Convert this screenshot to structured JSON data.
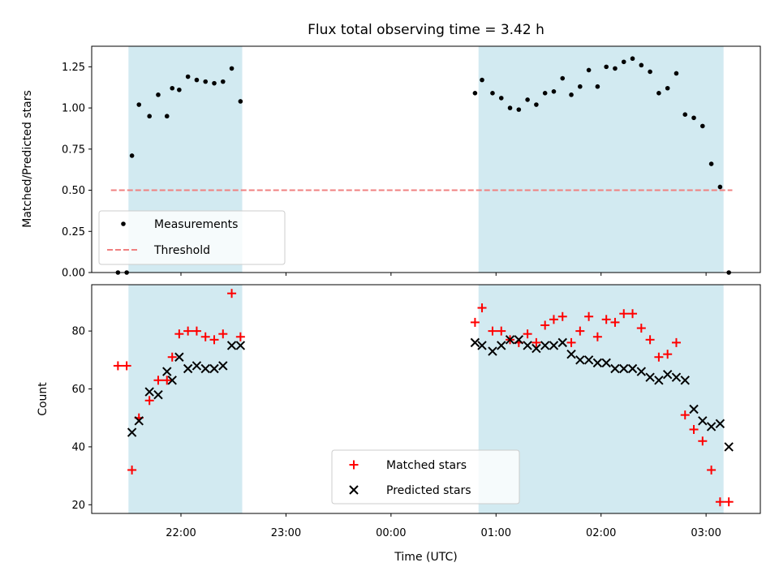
{
  "chart_data": [
    {
      "type": "scatter",
      "panel": "top",
      "title": "Flux total observing time = 3.42 h",
      "ylabel": "Matched/Predicted stars",
      "xlabel": "",
      "ylim": [
        0,
        1.375
      ],
      "x_range": [
        "21:09",
        "03:31"
      ],
      "yticks": [
        "0.00",
        "0.25",
        "0.50",
        "0.75",
        "1.00",
        "1.25"
      ],
      "grid": false,
      "legend_position": "lower-left",
      "observing_windows": [
        [
          "21:30",
          "22:35"
        ],
        [
          "00:50",
          "03:10"
        ]
      ],
      "window_color": "#add8e6",
      "threshold": {
        "name": "Threshold",
        "value": 0.5,
        "x": [
          "21:20",
          "03:15"
        ],
        "color": "#f08080",
        "style": "dashed"
      },
      "series": [
        {
          "name": "Measurements",
          "color": "#000000",
          "marker": "dot",
          "points": [
            [
              "21:24",
              0.0
            ],
            [
              "21:29",
              0.0
            ],
            [
              "21:32",
              0.71
            ],
            [
              "21:36",
              1.02
            ],
            [
              "21:42",
              0.95
            ],
            [
              "21:47",
              1.08
            ],
            [
              "21:52",
              0.95
            ],
            [
              "21:55",
              1.12
            ],
            [
              "21:59",
              1.11
            ],
            [
              "22:04",
              1.19
            ],
            [
              "22:09",
              1.17
            ],
            [
              "22:14",
              1.16
            ],
            [
              "22:19",
              1.15
            ],
            [
              "22:24",
              1.16
            ],
            [
              "22:29",
              1.24
            ],
            [
              "22:34",
              1.04
            ],
            [
              "00:48",
              1.09
            ],
            [
              "00:52",
              1.17
            ],
            [
              "00:58",
              1.09
            ],
            [
              "01:03",
              1.06
            ],
            [
              "01:08",
              1.0
            ],
            [
              "01:13",
              0.99
            ],
            [
              "01:18",
              1.05
            ],
            [
              "01:23",
              1.02
            ],
            [
              "01:28",
              1.09
            ],
            [
              "01:33",
              1.1
            ],
            [
              "01:38",
              1.18
            ],
            [
              "01:43",
              1.08
            ],
            [
              "01:48",
              1.13
            ],
            [
              "01:53",
              1.23
            ],
            [
              "01:58",
              1.13
            ],
            [
              "02:03",
              1.25
            ],
            [
              "02:08",
              1.24
            ],
            [
              "02:13",
              1.28
            ],
            [
              "02:18",
              1.3
            ],
            [
              "02:23",
              1.26
            ],
            [
              "02:28",
              1.22
            ],
            [
              "02:33",
              1.09
            ],
            [
              "02:38",
              1.12
            ],
            [
              "02:43",
              1.21
            ],
            [
              "02:48",
              0.96
            ],
            [
              "02:53",
              0.94
            ],
            [
              "02:58",
              0.89
            ],
            [
              "03:03",
              0.66
            ],
            [
              "03:08",
              0.52
            ],
            [
              "03:13",
              0.0
            ]
          ]
        }
      ]
    },
    {
      "type": "scatter",
      "panel": "bottom",
      "title": "",
      "ylabel": "Count",
      "xlabel": "Time (UTC)",
      "ylim": [
        17,
        96
      ],
      "x_range": [
        "21:09",
        "03:31"
      ],
      "yticks": [
        "20",
        "40",
        "60",
        "80"
      ],
      "xticks": [
        "22:00",
        "23:00",
        "00:00",
        "01:00",
        "02:00",
        "03:00"
      ],
      "grid": false,
      "legend_position": "lower-center",
      "observing_windows": [
        [
          "21:30",
          "22:35"
        ],
        [
          "00:50",
          "03:10"
        ]
      ],
      "window_color": "#add8e6",
      "series": [
        {
          "name": "Matched stars",
          "color": "#ff0000",
          "marker": "plus",
          "points": [
            [
              "21:24",
              68
            ],
            [
              "21:29",
              68
            ],
            [
              "21:32",
              32
            ],
            [
              "21:36",
              50
            ],
            [
              "21:42",
              56
            ],
            [
              "21:47",
              63
            ],
            [
              "21:52",
              63
            ],
            [
              "21:55",
              71
            ],
            [
              "21:59",
              79
            ],
            [
              "22:04",
              80
            ],
            [
              "22:09",
              80
            ],
            [
              "22:14",
              78
            ],
            [
              "22:19",
              77
            ],
            [
              "22:24",
              79
            ],
            [
              "22:29",
              93
            ],
            [
              "22:34",
              78
            ],
            [
              "00:48",
              83
            ],
            [
              "00:52",
              88
            ],
            [
              "00:58",
              80
            ],
            [
              "01:03",
              80
            ],
            [
              "01:08",
              77
            ],
            [
              "01:13",
              76
            ],
            [
              "01:18",
              79
            ],
            [
              "01:23",
              76
            ],
            [
              "01:28",
              82
            ],
            [
              "01:33",
              84
            ],
            [
              "01:38",
              85
            ],
            [
              "01:43",
              76
            ],
            [
              "01:48",
              80
            ],
            [
              "01:53",
              85
            ],
            [
              "01:58",
              78
            ],
            [
              "02:03",
              84
            ],
            [
              "02:08",
              83
            ],
            [
              "02:13",
              86
            ],
            [
              "02:18",
              86
            ],
            [
              "02:23",
              81
            ],
            [
              "02:28",
              77
            ],
            [
              "02:33",
              71
            ],
            [
              "02:38",
              72
            ],
            [
              "02:43",
              76
            ],
            [
              "02:48",
              51
            ],
            [
              "02:53",
              46
            ],
            [
              "02:58",
              42
            ],
            [
              "03:03",
              32
            ],
            [
              "03:08",
              21
            ],
            [
              "03:13",
              21
            ]
          ]
        },
        {
          "name": "Predicted stars",
          "color": "#000000",
          "marker": "cross",
          "points": [
            [
              "21:32",
              45
            ],
            [
              "21:36",
              49
            ],
            [
              "21:42",
              59
            ],
            [
              "21:47",
              58
            ],
            [
              "21:52",
              66
            ],
            [
              "21:55",
              63
            ],
            [
              "21:59",
              71
            ],
            [
              "22:04",
              67
            ],
            [
              "22:09",
              68
            ],
            [
              "22:14",
              67
            ],
            [
              "22:19",
              67
            ],
            [
              "22:24",
              68
            ],
            [
              "22:29",
              75
            ],
            [
              "22:34",
              75
            ],
            [
              "00:48",
              76
            ],
            [
              "00:52",
              75
            ],
            [
              "00:58",
              73
            ],
            [
              "01:03",
              75
            ],
            [
              "01:08",
              77
            ],
            [
              "01:13",
              77
            ],
            [
              "01:18",
              75
            ],
            [
              "01:23",
              74
            ],
            [
              "01:28",
              75
            ],
            [
              "01:33",
              75
            ],
            [
              "01:38",
              76
            ],
            [
              "01:43",
              72
            ],
            [
              "01:48",
              70
            ],
            [
              "01:53",
              70
            ],
            [
              "01:58",
              69
            ],
            [
              "02:03",
              69
            ],
            [
              "02:08",
              67
            ],
            [
              "02:13",
              67
            ],
            [
              "02:18",
              67
            ],
            [
              "02:23",
              66
            ],
            [
              "02:28",
              64
            ],
            [
              "02:33",
              63
            ],
            [
              "02:38",
              65
            ],
            [
              "02:43",
              64
            ],
            [
              "02:48",
              63
            ],
            [
              "02:53",
              53
            ],
            [
              "02:58",
              49
            ],
            [
              "03:03",
              47
            ],
            [
              "03:08",
              48
            ],
            [
              "03:13",
              40
            ]
          ]
        }
      ]
    }
  ]
}
